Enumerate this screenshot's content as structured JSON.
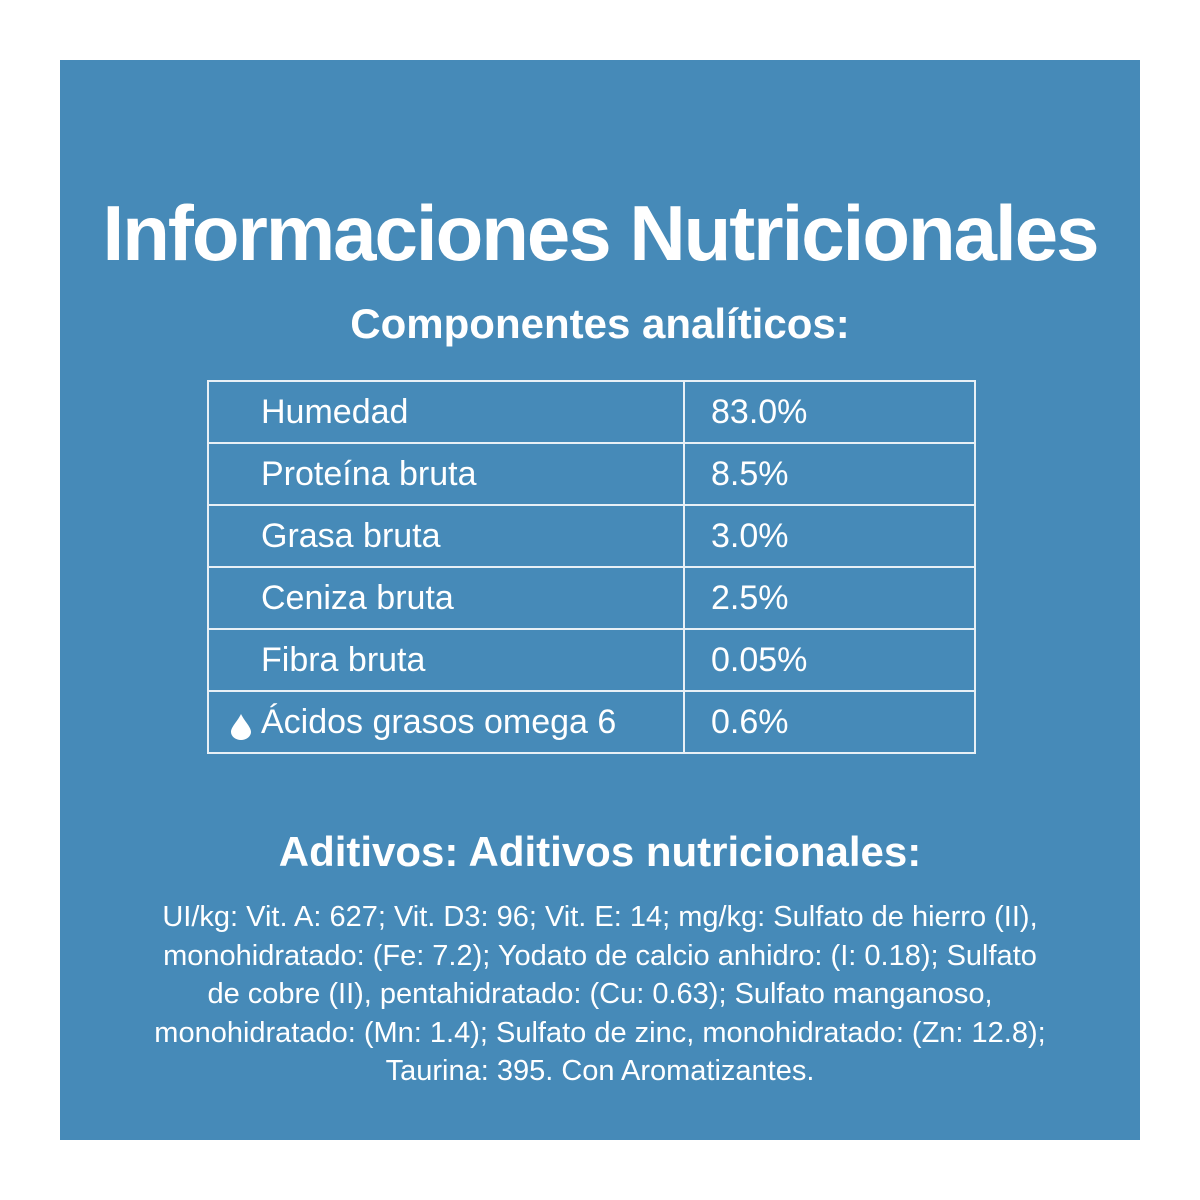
{
  "header": {
    "title": "Informaciones Nutricionales"
  },
  "section": {
    "title": "Componentes analíticos:"
  },
  "table": {
    "rows": [
      [
        "Humedad",
        "83.0%"
      ],
      [
        "Proteína bruta",
        "8.5%"
      ],
      [
        "Grasa bruta",
        "3.0%"
      ],
      [
        "Ceniza bruta",
        "2.5%"
      ],
      [
        "Fibra bruta",
        "0.05%"
      ],
      [
        "Ácidos grasos omega 6",
        "0.6%"
      ]
    ]
  },
  "additives": {
    "title": "Aditivos: Aditivos nutricionales:",
    "lines": [
      "UI/kg: Vit. A: 627; Vit. D3: 96; Vit. E: 14; mg/kg: Sulfato de hierro (II),",
      "monohidratado: (Fe: 7.2); Yodato de calcio anhidro: (I: 0.18); Sulfato",
      "de cobre (II), pentahidratado: (Cu: 0.63); Sulfato manganoso,",
      "monohidratado: (Mn: 1.4); Sulfato de zinc, monohidratado: (Zn: 12.8);",
      "Taurina: 395. Con Aromatizantes."
    ]
  }
}
